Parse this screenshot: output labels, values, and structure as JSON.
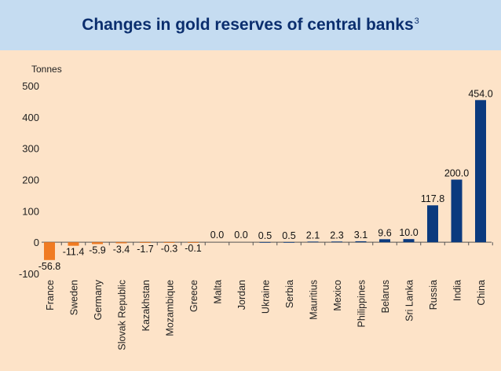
{
  "chart_data": {
    "type": "bar",
    "title": "Changes in gold reserves of central banks",
    "title_footnote": "3",
    "ylabel": "Tonnes",
    "xlabel": "",
    "ylim": [
      -100,
      500
    ],
    "yticks": [
      -100,
      0,
      100,
      200,
      300,
      400,
      500
    ],
    "categories": [
      "France",
      "Sweden",
      "Germany",
      "Slovak Republic",
      "Kazakhstan",
      "Mozambique",
      "Greece",
      "Malta",
      "Jordan",
      "Ukraine",
      "Serbia",
      "Mauritius",
      "Mexico",
      "Philippines",
      "Belarus",
      "Sri Lanka",
      "Russia",
      "India",
      "China"
    ],
    "values": [
      -56.8,
      -11.4,
      -5.9,
      -3.4,
      -1.7,
      -0.3,
      -0.1,
      0.0,
      0.0,
      0.5,
      0.5,
      2.1,
      2.3,
      3.1,
      9.6,
      10.0,
      117.8,
      200.0,
      454.0
    ],
    "labels": [
      "-56.8",
      "-11.4",
      "-5.9",
      "-3.4",
      "-1.7",
      "-0.3",
      "-0.1",
      "0.0",
      "0.0",
      "0.5",
      "0.5",
      "2.1",
      "2.3",
      "3.1",
      "9.6",
      "10.0",
      "117.8",
      "200.0",
      "454.0"
    ],
    "colors": {
      "positive": "#0b3a7e",
      "negative": "#f07b22",
      "title_band": "#c5dcf1",
      "background": "#fde3c8",
      "title_text": "#0b2e6e"
    },
    "grid": false,
    "legend": "none"
  }
}
